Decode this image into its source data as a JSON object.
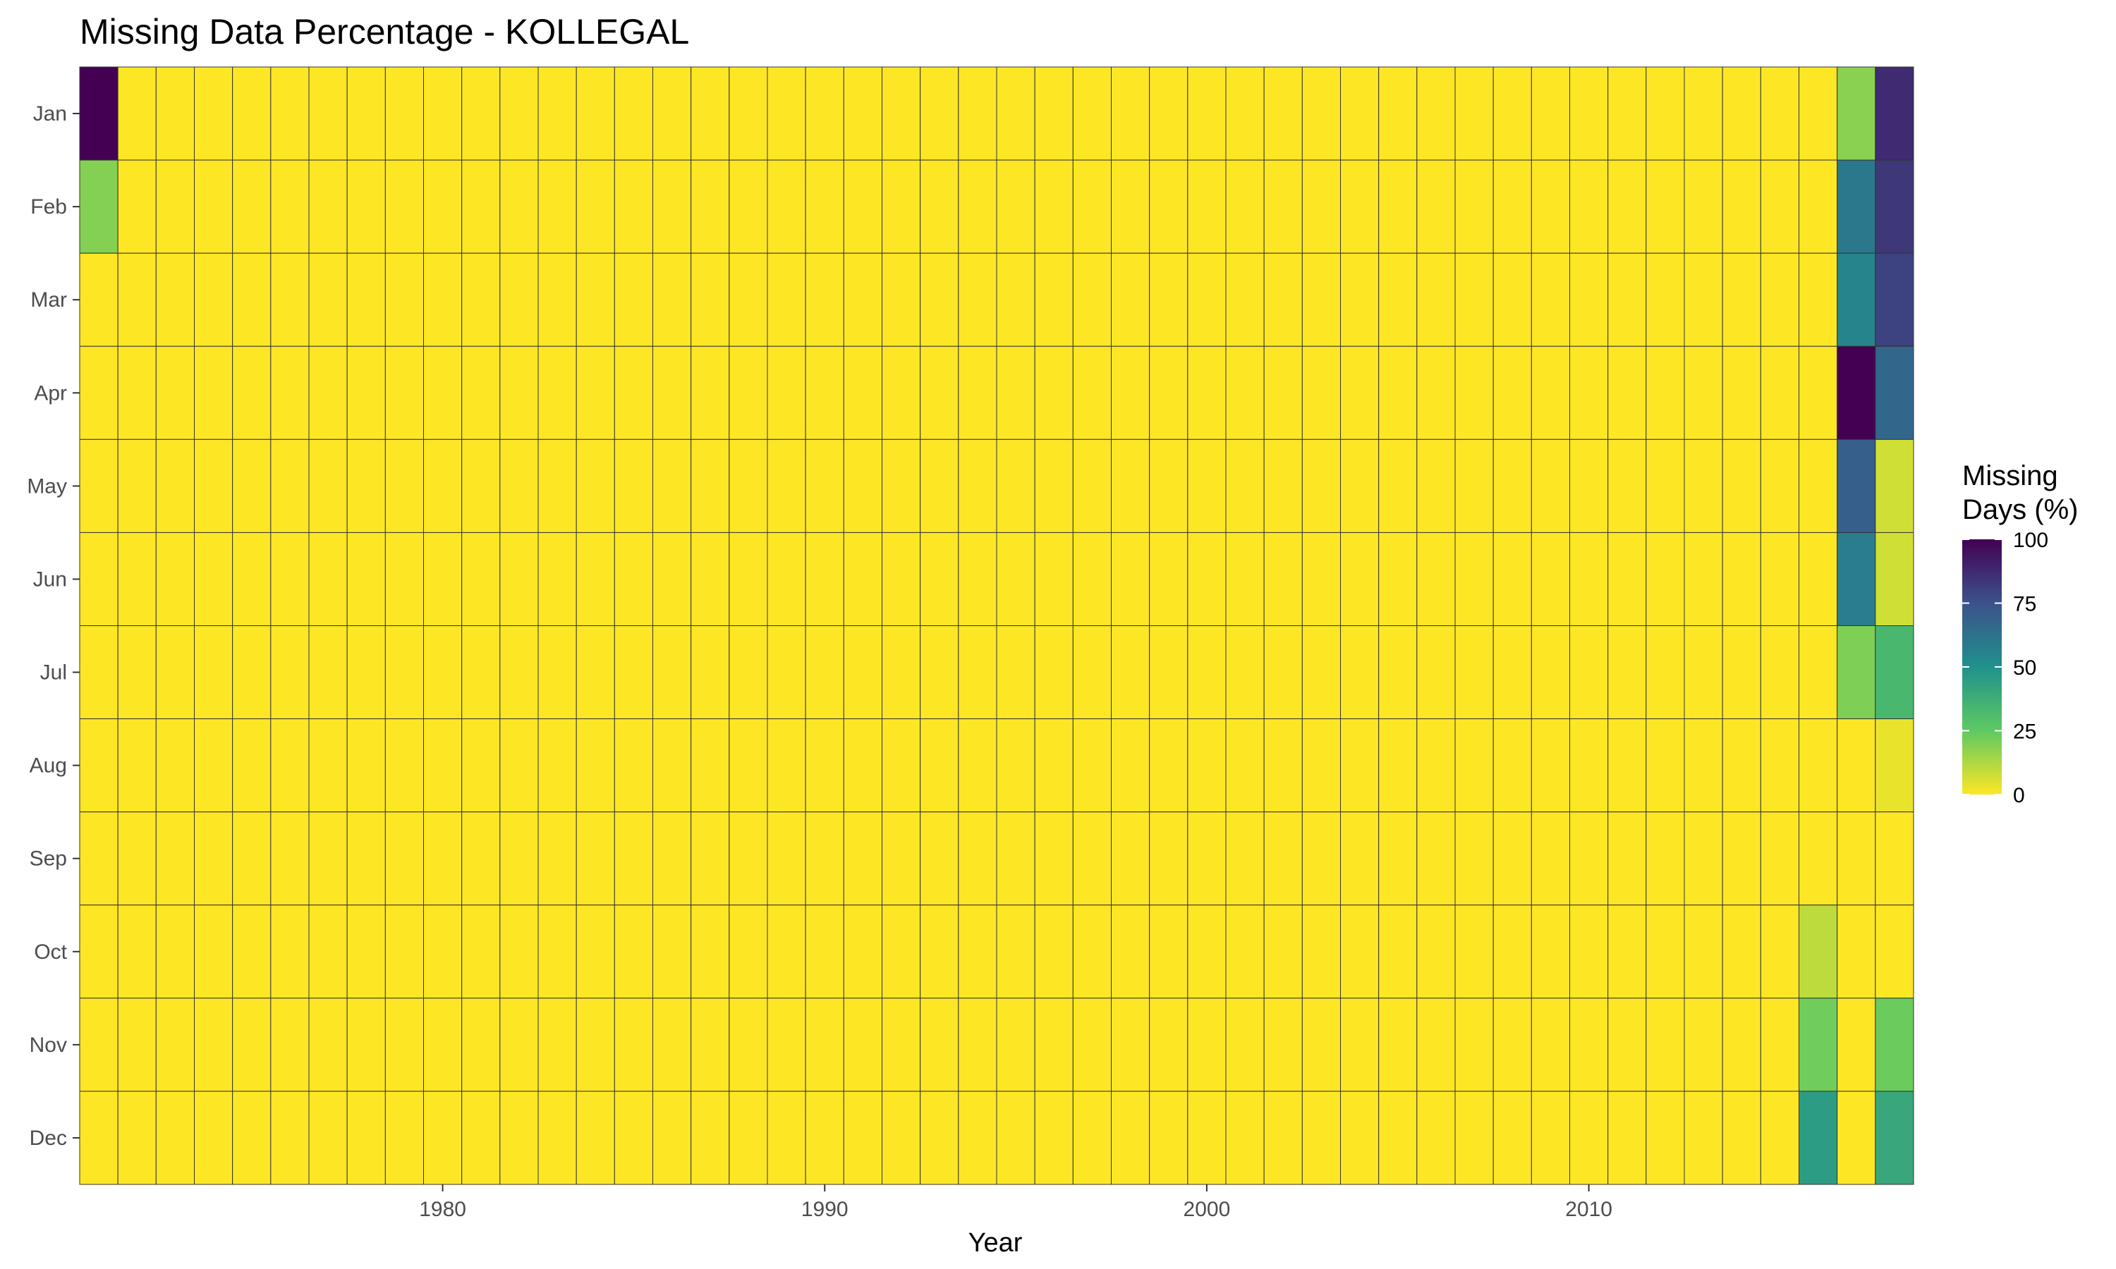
{
  "chart_data": {
    "type": "heatmap",
    "title": "Missing Data Percentage - KOLLEGAL",
    "xlabel": "Year",
    "ylabel": "",
    "x_start": 1971,
    "x_end": 2018,
    "x_ticks": [
      1980,
      1990,
      2000,
      2010
    ],
    "x_tick_labels": [
      "1980",
      "1990",
      "2000",
      "2010"
    ],
    "months": [
      "Jan",
      "Feb",
      "Mar",
      "Apr",
      "May",
      "Jun",
      "Jul",
      "Aug",
      "Sep",
      "Oct",
      "Nov",
      "Dec"
    ],
    "default_value": 0,
    "nonzero_cells": [
      {
        "year": 1971,
        "month": "Jan",
        "value": 100
      },
      {
        "year": 1971,
        "month": "Feb",
        "value": 19
      },
      {
        "year": 2016,
        "month": "Oct",
        "value": 10
      },
      {
        "year": 2016,
        "month": "Nov",
        "value": 22
      },
      {
        "year": 2016,
        "month": "Dec",
        "value": 45
      },
      {
        "year": 2017,
        "month": "Jan",
        "value": 18
      },
      {
        "year": 2017,
        "month": "Feb",
        "value": 60
      },
      {
        "year": 2017,
        "month": "Mar",
        "value": 55
      },
      {
        "year": 2017,
        "month": "Apr",
        "value": 100
      },
      {
        "year": 2017,
        "month": "May",
        "value": 70
      },
      {
        "year": 2017,
        "month": "Jun",
        "value": 58
      },
      {
        "year": 2017,
        "month": "Jul",
        "value": 20
      },
      {
        "year": 2018,
        "month": "Jan",
        "value": 87
      },
      {
        "year": 2018,
        "month": "Feb",
        "value": 83
      },
      {
        "year": 2018,
        "month": "Mar",
        "value": 80
      },
      {
        "year": 2018,
        "month": "Apr",
        "value": 67
      },
      {
        "year": 2018,
        "month": "May",
        "value": 7
      },
      {
        "year": 2018,
        "month": "Jun",
        "value": 7
      },
      {
        "year": 2018,
        "month": "Jul",
        "value": 33
      },
      {
        "year": 2018,
        "month": "Aug",
        "value": 3
      },
      {
        "year": 2018,
        "month": "Nov",
        "value": 23
      },
      {
        "year": 2018,
        "month": "Dec",
        "value": 40
      }
    ],
    "legend": {
      "title_lines": [
        "Missing",
        "Days (%)"
      ],
      "ticks": [
        0,
        25,
        50,
        75,
        100
      ],
      "tick_labels": [
        "0",
        "25",
        "50",
        "75",
        "100"
      ],
      "placement": "right"
    },
    "colorscale": "viridis-reversed",
    "colors": {
      "stops": [
        "#fde725",
        "#5ec962",
        "#21918c",
        "#3b528b",
        "#440154"
      ],
      "cell_border": "#333333",
      "tick_text": "#4d4d4d"
    }
  }
}
